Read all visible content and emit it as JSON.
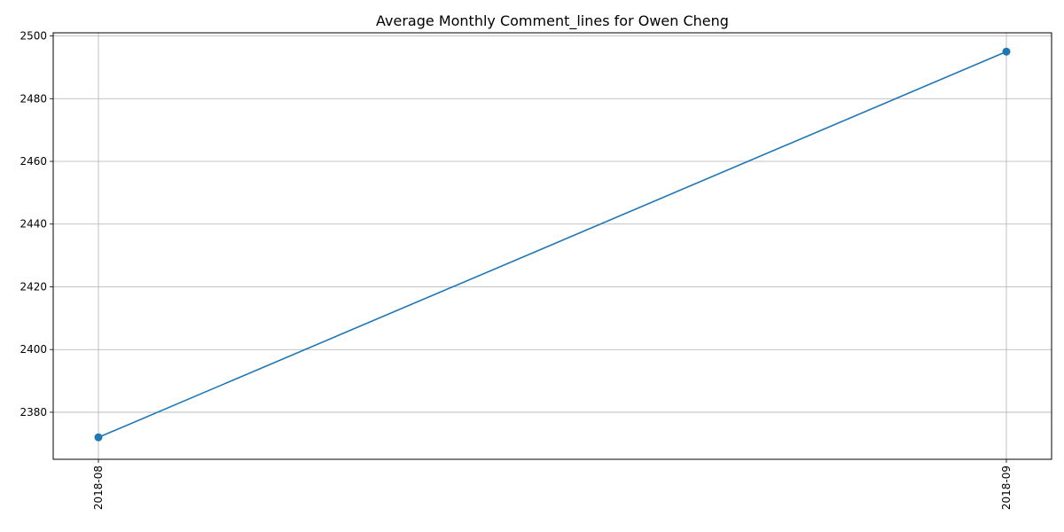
{
  "chart_data": {
    "type": "line",
    "title": "Average Monthly Comment_lines for Owen Cheng",
    "xlabel": "",
    "ylabel": "",
    "categories": [
      "2018-08",
      "2018-09"
    ],
    "series": [
      {
        "values": [
          2372,
          2495
        ],
        "color": "#1f77b4",
        "marker": "circle"
      }
    ],
    "ylim": [
      2365,
      2501
    ],
    "yticks": [
      "2380",
      "2400",
      "2420",
      "2440",
      "2460",
      "2480",
      "2500"
    ],
    "grid": true,
    "x_tick_rotation": "vertical"
  }
}
